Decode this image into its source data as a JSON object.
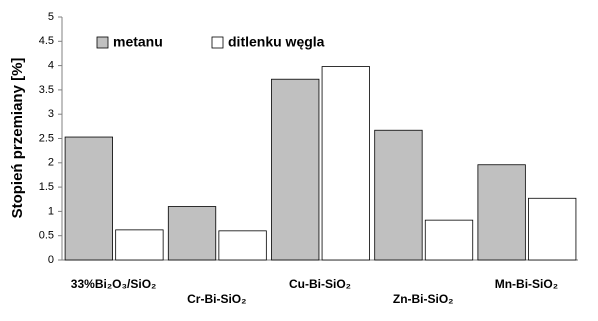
{
  "chart_data": {
    "type": "bar",
    "y_label": "Stopień przemiany [%]",
    "categories": [
      "33%Bi₂O₃/SiO₂",
      "Cr-Bi-SiO₂",
      "Cu-Bi-SiO₂",
      "Zn-Bi-SiO₂",
      "Mn-Bi-SiO₂"
    ],
    "series": [
      {
        "name": "metanu",
        "color": "#c0c0c0",
        "values": [
          2.53,
          1.1,
          3.72,
          2.67,
          1.96
        ]
      },
      {
        "name": "ditlenku węgla",
        "color": "#ffffff",
        "values": [
          0.62,
          0.6,
          3.98,
          0.82,
          1.27
        ]
      }
    ],
    "ylim": [
      0,
      5
    ],
    "yticks": [
      0,
      0.5,
      1,
      1.5,
      2,
      2.5,
      3,
      3.5,
      4,
      4.5,
      5
    ],
    "grid": false
  }
}
